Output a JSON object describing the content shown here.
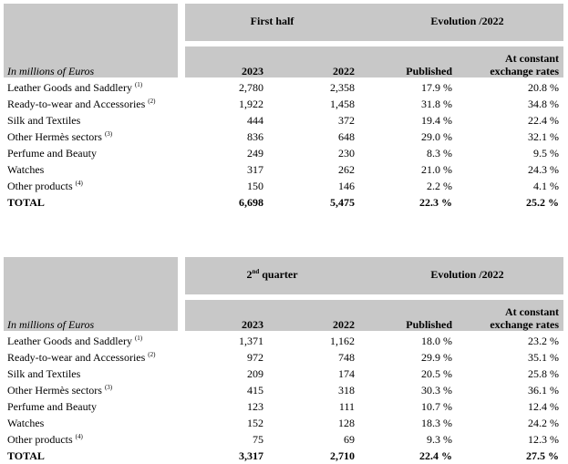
{
  "tables": [
    {
      "group1": "First half",
      "group2": "Evolution /2022",
      "corner_label": "In millions of Euros",
      "col_2023": "2023",
      "col_2022": "2022",
      "col_published": "Published",
      "col_constant_l1": "At constant",
      "col_constant_l2": "exchange rates",
      "rows": [
        {
          "label": "Leather Goods and Saddlery",
          "note": "(1)",
          "v2023": "2,780",
          "v2022": "2,358",
          "pub": "17.9 %",
          "const": "20.8 %"
        },
        {
          "label": "Ready-to-wear and Accessories",
          "note": "(2)",
          "v2023": "1,922",
          "v2022": "1,458",
          "pub": "31.8 %",
          "const": "34.8 %"
        },
        {
          "label": "Silk and Textiles",
          "note": "",
          "v2023": "444",
          "v2022": "372",
          "pub": "19.4 %",
          "const": "22.4 %"
        },
        {
          "label": "Other Hermès sectors",
          "note": "(3)",
          "v2023": "836",
          "v2022": "648",
          "pub": "29.0 %",
          "const": "32.1 %"
        },
        {
          "label": "Perfume and Beauty",
          "note": "",
          "v2023": "249",
          "v2022": "230",
          "pub": "8.3 %",
          "const": "9.5 %"
        },
        {
          "label": "Watches",
          "note": "",
          "v2023": "317",
          "v2022": "262",
          "pub": "21.0 %",
          "const": "24.3 %"
        },
        {
          "label": "Other products",
          "note": "(4)",
          "v2023": "150",
          "v2022": "146",
          "pub": "2.2 %",
          "const": "4.1 %"
        },
        {
          "label": "TOTAL",
          "note": "",
          "v2023": "6,698",
          "v2022": "5,475",
          "pub": "22.3 %",
          "const": "25.2 %"
        }
      ]
    },
    {
      "group1_num": "2",
      "group1_sup": "nd",
      "group1_rest": " quarter",
      "group2": "Evolution /2022",
      "corner_label": "In millions of Euros",
      "col_2023": "2023",
      "col_2022": "2022",
      "col_published": "Published",
      "col_constant_l1": "At constant",
      "col_constant_l2": "exchange rates",
      "rows": [
        {
          "label": "Leather Goods and Saddlery",
          "note": "(1)",
          "v2023": "1,371",
          "v2022": "1,162",
          "pub": "18.0 %",
          "const": "23.2 %"
        },
        {
          "label": "Ready-to-wear and Accessories",
          "note": "(2)",
          "v2023": "972",
          "v2022": "748",
          "pub": "29.9 %",
          "const": "35.1 %"
        },
        {
          "label": "Silk and Textiles",
          "note": "",
          "v2023": "209",
          "v2022": "174",
          "pub": "20.5 %",
          "const": "25.8 %"
        },
        {
          "label": "Other Hermès sectors",
          "note": "(3)",
          "v2023": "415",
          "v2022": "318",
          "pub": "30.3 %",
          "const": "36.1 %"
        },
        {
          "label": "Perfume and Beauty",
          "note": "",
          "v2023": "123",
          "v2022": "111",
          "pub": "10.7 %",
          "const": "12.4 %"
        },
        {
          "label": "Watches",
          "note": "",
          "v2023": "152",
          "v2022": "128",
          "pub": "18.3 %",
          "const": "24.2 %"
        },
        {
          "label": "Other products",
          "note": "(4)",
          "v2023": "75",
          "v2022": "69",
          "pub": "9.3 %",
          "const": "12.3 %"
        },
        {
          "label": "TOTAL",
          "note": "",
          "v2023": "3,317",
          "v2022": "2,710",
          "pub": "22.4 %",
          "const": "27.5 %"
        }
      ]
    }
  ]
}
